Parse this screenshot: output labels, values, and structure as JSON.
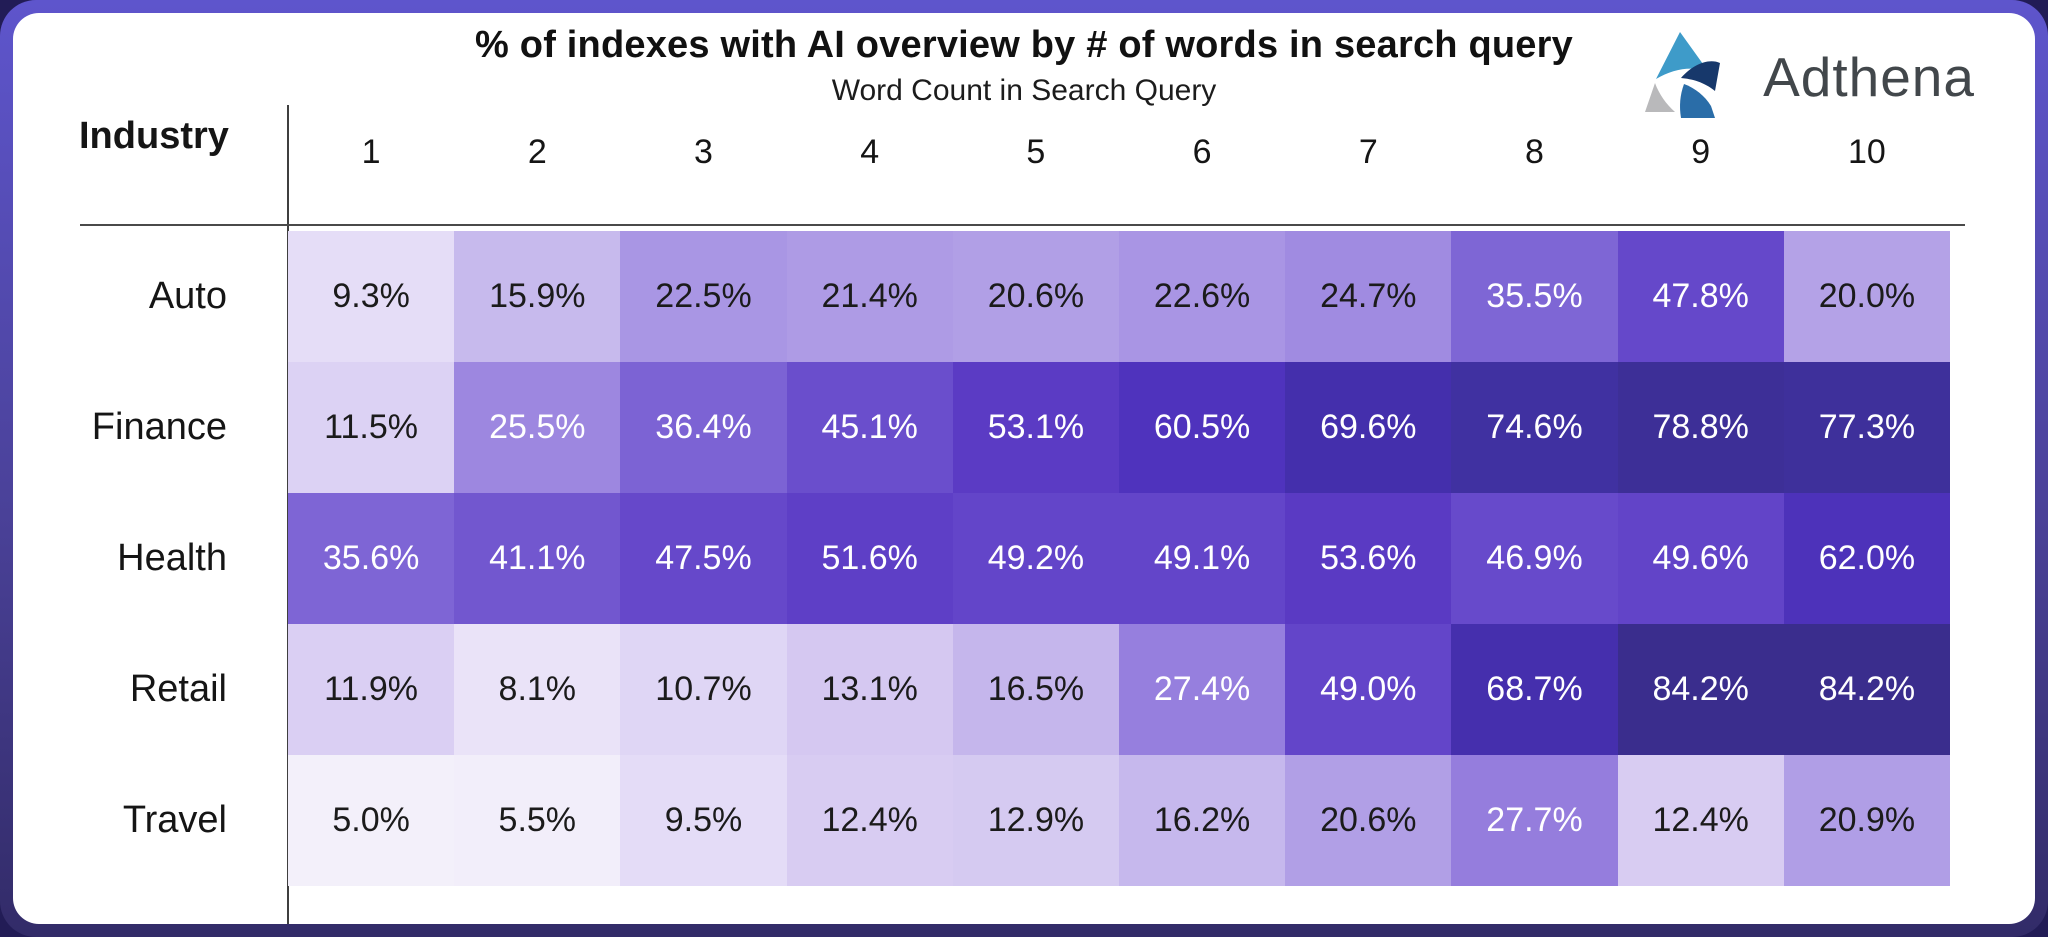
{
  "card": {
    "title": "% of indexes with AI overview by # of words in search query"
  },
  "logo": {
    "text": "Adthena",
    "text_color": "#42474b",
    "mark_colors": {
      "top_triangle": "#3e9bc9",
      "left_triangle": "#b9b9bb",
      "center_wedge": "#17386b",
      "bottom_wedge": "#2a6da8"
    }
  },
  "frame_colors": {
    "page_background": "#221c56",
    "border_top": "#5e55cc",
    "border_bottom": "#322b68",
    "card_background": "#ffffff",
    "axis_line": "#3f3f3f"
  },
  "chart_data": {
    "type": "heatmap",
    "title": "% of indexes with AI overview by # of words in search query",
    "xlabel": "Word Count in Search Query",
    "ylabel": "Industry",
    "legend": "none",
    "unit": "%",
    "value_format": "one_decimal_percent",
    "categories_x": [
      "1",
      "2",
      "3",
      "4",
      "5",
      "6",
      "7",
      "8",
      "9",
      "10"
    ],
    "categories_y": [
      "Auto",
      "Finance",
      "Health",
      "Retail",
      "Travel"
    ],
    "series": [
      {
        "name": "Auto",
        "values": [
          9.3,
          15.9,
          22.5,
          21.4,
          20.6,
          22.6,
          24.7,
          35.5,
          47.8,
          20.0
        ]
      },
      {
        "name": "Finance",
        "values": [
          11.5,
          25.5,
          36.4,
          45.1,
          53.1,
          60.5,
          69.6,
          74.6,
          78.8,
          77.3
        ]
      },
      {
        "name": "Health",
        "values": [
          35.6,
          41.1,
          47.5,
          51.6,
          49.2,
          49.1,
          53.6,
          46.9,
          49.6,
          62.0
        ]
      },
      {
        "name": "Retail",
        "values": [
          11.9,
          8.1,
          10.7,
          13.1,
          16.5,
          27.4,
          49.0,
          68.7,
          84.2,
          84.2
        ]
      },
      {
        "name": "Travel",
        "values": [
          5.0,
          5.5,
          9.5,
          12.4,
          12.9,
          16.2,
          20.6,
          27.7,
          12.4,
          20.9
        ]
      }
    ],
    "color_scale": {
      "white_text_threshold": 25,
      "dark_text_color": "#1b1b1b",
      "light_text_color": "#ffffff",
      "stops": [
        [
          0,
          "#faf8fd"
        ],
        [
          5,
          "#f3f0fa"
        ],
        [
          8,
          "#eae3f8"
        ],
        [
          10,
          "#e2daf6"
        ],
        [
          13,
          "#d5c9f1"
        ],
        [
          16,
          "#c7b9ed"
        ],
        [
          20,
          "#b4a2e7"
        ],
        [
          24,
          "#a38ee2"
        ],
        [
          28,
          "#947cdd"
        ],
        [
          33,
          "#856ed8"
        ],
        [
          36,
          "#7d64d4"
        ],
        [
          41,
          "#7257cf"
        ],
        [
          45,
          "#6a4ecc"
        ],
        [
          49,
          "#6345c9"
        ],
        [
          54,
          "#5939c3"
        ],
        [
          61,
          "#4e32bc"
        ],
        [
          65,
          "#4930b4"
        ],
        [
          70,
          "#442fab"
        ],
        [
          75,
          "#4031a0"
        ],
        [
          79,
          "#3d2f97"
        ],
        [
          85,
          "#3a2d8c"
        ]
      ]
    }
  }
}
